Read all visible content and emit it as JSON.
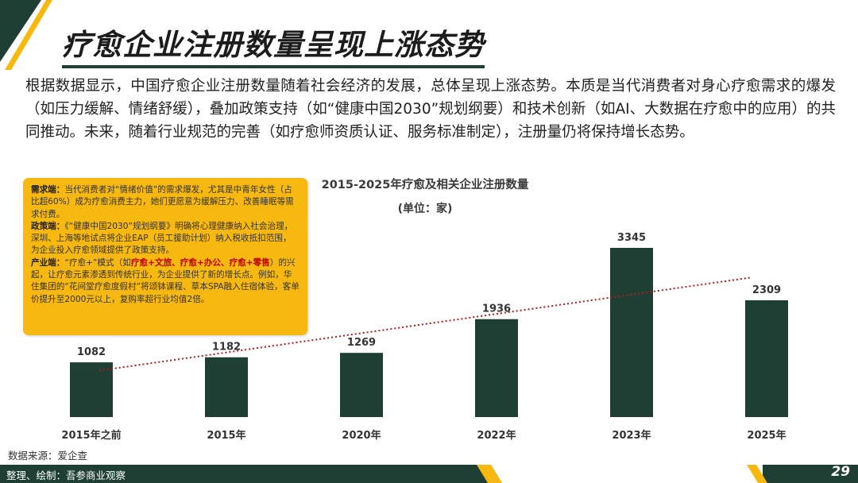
{
  "title": "疗愈企业注册数量呈现上涨态势",
  "paragraph": "根据数据显示，中国疗愈企业注册数量随着社会经济的发展，总体呈现上涨态势。本质是当代消费者对身心疗愈需求的爆发（如压力缓解、情绪舒缓），叠加政策支持（如“健康中国2030”规划纲要）和技术创新（如AI、大数据在疗愈中的应用）的共同推动。未来，随着行业规范的完善（如疗愈师资质认证、服务标准制定），注册量仍将保持增长态势。",
  "callout": {
    "demand_head": "需求端：",
    "demand_text": "当代消费者对“情绪价值”的需求爆发，尤其是中青年女性（占比超60%）成为疗愈消费主力，她们更愿意为缓解压力、改善睡眠等需求付费。",
    "policy_head": "政策端：",
    "policy_text": "《“健康中国2030”规划纲要》明确将心理健康纳入社会治理，深圳、上海等地试点将企业EAP（员工援助计划）纳入税收抵扣范围，为企业投入疗愈领域提供了政策支持。",
    "industry_head": "产业端：",
    "industry_text1": "“疗愈+”模式（如",
    "industry_red": "疗愈+文旅、疗愈+办公、疗愈+零售",
    "industry_text2": "）的兴起，让疗愈元素渗透到传统行业，为企业提供了新的增长点。例如，华住集团的“花间堂疗愈度假村”将颂钵课程、草本SPA融入住宿体验，客单价提升至2000元以上，复购率超行业均值2倍。"
  },
  "chart_data": {
    "type": "bar",
    "title": "2015-2025年疗愈及相关企业注册数量",
    "subtitle": "(单位：家)",
    "categories": [
      "2015年之前",
      "2015年",
      "2020年",
      "2022年",
      "2023年",
      "2025年"
    ],
    "values": [
      1082,
      1182,
      1269,
      1936,
      3345,
      2309
    ],
    "trendline": "linear",
    "bar_color": "#1f3f35",
    "trend_color": "#b01c1c",
    "ylim": [
      0,
      3600
    ],
    "grid": false,
    "legend": "none"
  },
  "source": "数据来源：爱企查",
  "footer": "整理、绘制：吾参商业观察",
  "page_number": "29",
  "colors": {
    "accent": "#1f3f35",
    "highlight": "#f7b80f"
  }
}
